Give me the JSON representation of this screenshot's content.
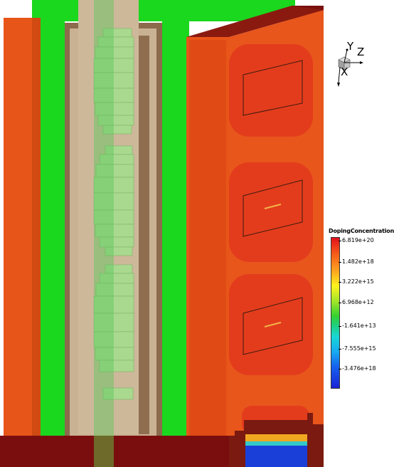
{
  "legend": {
    "title": "DopingConcentration",
    "labels": [
      "6.819e+20",
      "1.482e+18",
      "3.222e+15",
      "6.968e+12",
      "-1.641e+13",
      "-7.555e+15",
      "-3.476e+18"
    ]
  },
  "axes": {
    "y": "Y",
    "z": "Z",
    "x": "X"
  },
  "colors": {
    "oxide_red": "#e85518",
    "deep_red": "#e03a1c",
    "green": "#1ad81e",
    "light_green": "#a8d890",
    "tan": "#c9b293",
    "brown": "#8b6b4c",
    "dark_red": "#7a0e0e",
    "blue": "#1a3fd8"
  }
}
